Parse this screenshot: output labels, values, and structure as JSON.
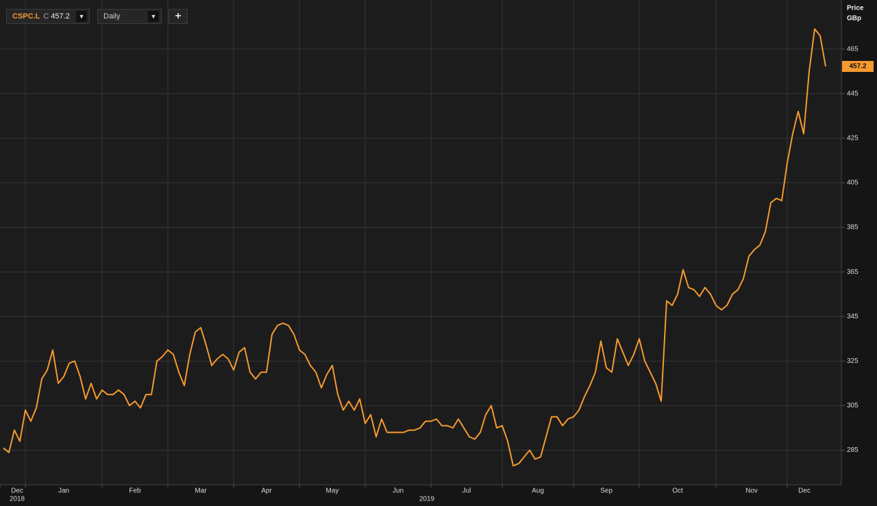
{
  "chart_data": {
    "type": "line",
    "series": [
      {
        "name": "CSPC.L",
        "color": "#f79a2e",
        "values": [
          286,
          284,
          294,
          289,
          303,
          298,
          304,
          317,
          321,
          330,
          315,
          318,
          324,
          325,
          318,
          308,
          315,
          308,
          312,
          310,
          310,
          312,
          310,
          305,
          307,
          304,
          310,
          310,
          325,
          327,
          330,
          328,
          320,
          314,
          328,
          338,
          340,
          332,
          323,
          326,
          328,
          326,
          321,
          329,
          331,
          320,
          317,
          320,
          320,
          337,
          341,
          342,
          341,
          337,
          330,
          328,
          323,
          320,
          313,
          319,
          323,
          310,
          303,
          307,
          303,
          308,
          297,
          301,
          291,
          299,
          293,
          293,
          293,
          293,
          294,
          294,
          295,
          298,
          298,
          299,
          296,
          296,
          295,
          299,
          295,
          291,
          290,
          293,
          301,
          305,
          295,
          296,
          289,
          278,
          279,
          282,
          285,
          281,
          282,
          291,
          300,
          300,
          296,
          299,
          300,
          303,
          309,
          314,
          320,
          334,
          322,
          320,
          335,
          329,
          323,
          328,
          335,
          325,
          320,
          315,
          307,
          352,
          350,
          355,
          366,
          358,
          357,
          354,
          358,
          355,
          350,
          348,
          350,
          355,
          357,
          362,
          372,
          375,
          377,
          383,
          396,
          398,
          397,
          414,
          427,
          437,
          427,
          455,
          474,
          471,
          457.2
        ]
      }
    ],
    "categories": [
      "Dec",
      null,
      null,
      null,
      "Jan",
      null,
      null,
      null,
      null,
      null,
      null,
      null,
      null,
      null,
      null,
      null,
      null,
      null,
      "Feb",
      null,
      null,
      null,
      null,
      null,
      null,
      null,
      null,
      null,
      null,
      null,
      "Mar",
      null,
      null,
      null,
      null,
      null,
      null,
      null,
      null,
      null,
      null,
      null,
      "Apr",
      null,
      null,
      null,
      null,
      null,
      null,
      null,
      null,
      null,
      null,
      null,
      "May",
      null,
      null,
      null,
      null,
      null,
      null,
      null,
      null,
      null,
      null,
      null,
      "Jun",
      null,
      null,
      null,
      null,
      null,
      null,
      null,
      null,
      null,
      null,
      null,
      "Jul",
      null,
      null,
      null,
      null,
      null,
      null,
      null,
      null,
      null,
      null,
      null,
      null,
      "Aug",
      null,
      null,
      null,
      null,
      null,
      null,
      null,
      null,
      null,
      null,
      null,
      null,
      "Sep",
      null,
      null,
      null,
      null,
      null,
      null,
      null,
      null,
      null,
      null,
      null,
      "Oct",
      null,
      null,
      null,
      null,
      null,
      null,
      null,
      null,
      null,
      null,
      null,
      null,
      null,
      "Nov",
      null,
      null,
      null,
      null,
      null,
      null,
      null,
      null,
      null,
      null,
      null,
      null,
      "Dec",
      null,
      null,
      null,
      null,
      null,
      null,
      null
    ],
    "ylim": [
      269.5,
      487
    ],
    "yticks": [
      285,
      305,
      325,
      345,
      365,
      385,
      405,
      425,
      445,
      465
    ],
    "grid": true
  },
  "ui": {
    "close_prefix": "C",
    "interval": "Daily",
    "axis_title": "Price",
    "axis_unit": "GBp",
    "years": [
      "2018",
      "2019"
    ]
  }
}
